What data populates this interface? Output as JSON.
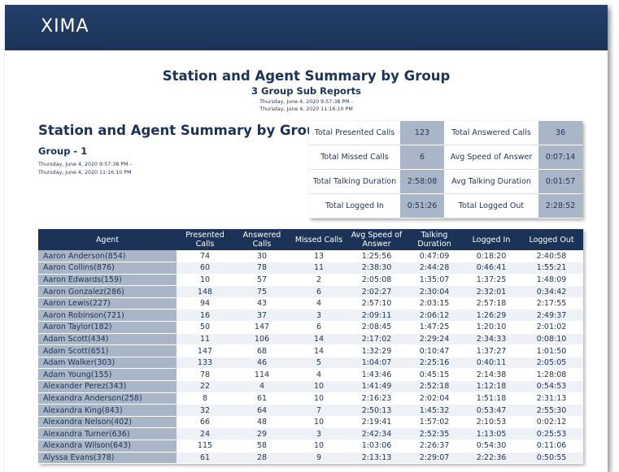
{
  "brand": {
    "logo_text": "XIMA",
    "header_color": "#1c3357",
    "accent": "#4aa6e0"
  },
  "report": {
    "title": "Station and Agent Summary by Group",
    "subtitle": "3 Group Sub Reports",
    "date_start": "Thursday, June 4, 2020 9:57:38 PM -",
    "date_end": "Thursday, June 4, 2020 11:16:10 PM"
  },
  "section": {
    "title": "Station and Agent Summary by Group",
    "group": "Group - 1",
    "date_start": "Thursday, June 4, 2020 9:57:38 PM -",
    "date_end": "Thursday, June 4, 2020 11:16:10 PM"
  },
  "summary": [
    {
      "label": "Total Presented Calls",
      "value": "123"
    },
    {
      "label": "Total Answered Calls",
      "value": "36"
    },
    {
      "label": "Total Missed Calls",
      "value": "6"
    },
    {
      "label": "Avg Speed of Answer",
      "value": "0:07:14"
    },
    {
      "label": "Total Talking Duration",
      "value": "2:58:08"
    },
    {
      "label": "Avg Talking Duration",
      "value": "0:01:57"
    },
    {
      "label": "Total Logged In",
      "value": "0:51:26"
    },
    {
      "label": "Total Logged Out",
      "value": "2:28:52"
    }
  ],
  "table": {
    "columns": [
      "Agent",
      "Presented Calls",
      "Answered Calls",
      "Missed Calls",
      "Avg Speed of Answer",
      "Talking Duration",
      "Logged In",
      "Logged Out"
    ],
    "rows": [
      [
        "Aaron Anderson(854)",
        "74",
        "30",
        "13",
        "1:25:56",
        "0:47:09",
        "0:18:20",
        "2:40:58"
      ],
      [
        "Aaron Collins(876)",
        "60",
        "78",
        "11",
        "2:38:30",
        "2:44:28",
        "0:46:41",
        "1:55:21"
      ],
      [
        "Aaron Edwards(159)",
        "10",
        "57",
        "2",
        "2:05:08",
        "1:35:07",
        "1:37:25",
        "1:48:09"
      ],
      [
        "Aaron Gonzalez(286)",
        "148",
        "75",
        "6",
        "2:02:27",
        "2:30:04",
        "2:32:01",
        "0:34:42"
      ],
      [
        "Aaron Lewis(227)",
        "94",
        "43",
        "4",
        "2:57:10",
        "2:03:15",
        "2:57:18",
        "2:17:55"
      ],
      [
        "Aaron Robinson(721)",
        "16",
        "37",
        "3",
        "2:09:11",
        "2:06:12",
        "1:26:29",
        "2:49:37"
      ],
      [
        "Aaron Taylor(182)",
        "50",
        "147",
        "6",
        "2:08:45",
        "1:47:25",
        "1:20:10",
        "2:01:02"
      ],
      [
        "Adam Scott(434)",
        "11",
        "106",
        "14",
        "2:17:02",
        "2:29:24",
        "2:34:33",
        "0:08:10"
      ],
      [
        "Adam Scott(651)",
        "147",
        "68",
        "14",
        "1:32:29",
        "0:10:47",
        "1:37:27",
        "1:01:50"
      ],
      [
        "Adam Walker(303)",
        "133",
        "46",
        "5",
        "1:04:07",
        "2:25:16",
        "0:40:11",
        "2:05:05"
      ],
      [
        "Adam Young(155)",
        "78",
        "114",
        "4",
        "1:43:46",
        "0:45:15",
        "2:14:38",
        "1:28:08"
      ],
      [
        "Alexander Perez(343)",
        "22",
        "4",
        "10",
        "1:41:49",
        "2:52:18",
        "1:12:18",
        "0:54:53"
      ],
      [
        "Alexandra Anderson(258)",
        "8",
        "61",
        "10",
        "2:16:23",
        "2:02:04",
        "1:51:18",
        "2:31:13"
      ],
      [
        "Alexandra King(843)",
        "32",
        "64",
        "7",
        "2:50:13",
        "1:45:32",
        "0:53:47",
        "2:55:30"
      ],
      [
        "Alexandra Nelson(402)",
        "66",
        "48",
        "10",
        "2:19:41",
        "1:57:02",
        "2:10:53",
        "0:02:12"
      ],
      [
        "Alexandra Turner(636)",
        "24",
        "29",
        "3",
        "2:42:34",
        "2:52:35",
        "1:13:05",
        "0:25:53"
      ],
      [
        "Alexandra Wilson(643)",
        "115",
        "58",
        "10",
        "1:03:06",
        "2:26:37",
        "0:54:30",
        "0:11:06"
      ],
      [
        "Alyssa Evans(378)",
        "61",
        "28",
        "9",
        "2:13:13",
        "2:29:07",
        "2:22:36",
        "0:50:55"
      ]
    ]
  }
}
